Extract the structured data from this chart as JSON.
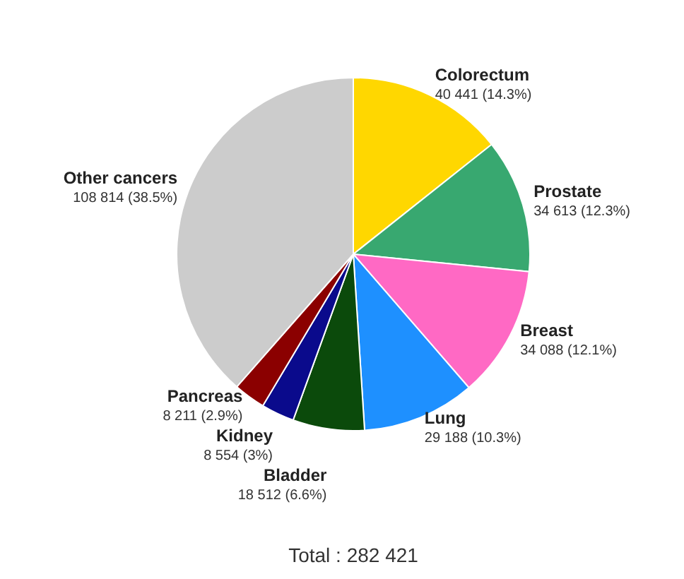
{
  "chart_data": {
    "type": "pie",
    "categories": [
      "Colorectum",
      "Prostate",
      "Breast",
      "Lung",
      "Bladder",
      "Kidney",
      "Pancreas",
      "Other cancers"
    ],
    "values": [
      40441,
      34613,
      34088,
      29188,
      18512,
      8554,
      8211,
      108814
    ],
    "value_labels": [
      "40 441 (14.3%)",
      "34 613 (12.3%)",
      "34 088 (12.1%)",
      "29 188 (10.3%)",
      "18 512 (6.6%)",
      "8 554 (3%)",
      "8 211 (2.9%)",
      "108 814 (38.5%)"
    ],
    "colors": [
      "#ffd700",
      "#38a870",
      "#ff69c4",
      "#1e90ff",
      "#0b4a0b",
      "#0a0a8c",
      "#8b0000",
      "#cccccc"
    ],
    "annotations": [
      "Total : 282 421"
    ]
  }
}
